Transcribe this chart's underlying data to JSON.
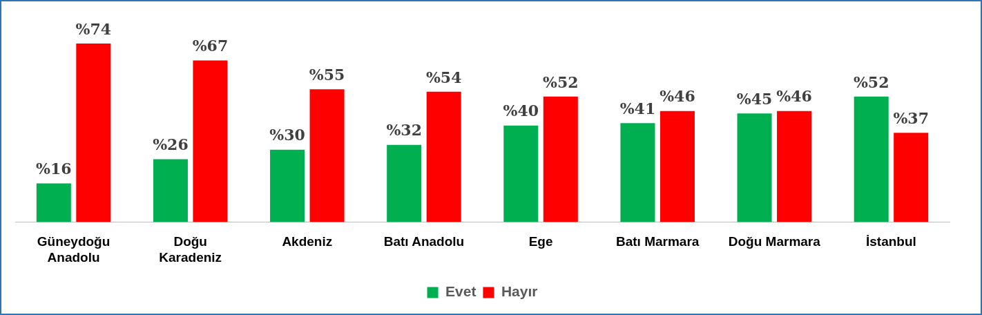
{
  "chart_data": {
    "type": "bar",
    "categories": [
      "Güneydoğu\nAnadolu",
      "Doğu\nKaradeniz",
      "Akdeniz",
      "Batı Anadolu",
      "Ege",
      "Batı Marmara",
      "Doğu Marmara",
      "İstanbul"
    ],
    "series": [
      {
        "name": "Evet",
        "color": "#00b050",
        "values": [
          16,
          26,
          30,
          32,
          40,
          41,
          45,
          52
        ],
        "value_labels": [
          "%16",
          "%26",
          "%30",
          "%32",
          "%40",
          "%41",
          "%45",
          "%52"
        ]
      },
      {
        "name": "Hayır",
        "color": "#ff0000",
        "values": [
          74,
          67,
          55,
          54,
          52,
          46,
          46,
          37
        ],
        "value_labels": [
          "%74",
          "%67",
          "%55",
          "%54",
          "%52",
          "%46",
          "%46",
          "%37"
        ]
      }
    ],
    "tick_labels": "x",
    "grid": false,
    "legend": "bottom"
  }
}
